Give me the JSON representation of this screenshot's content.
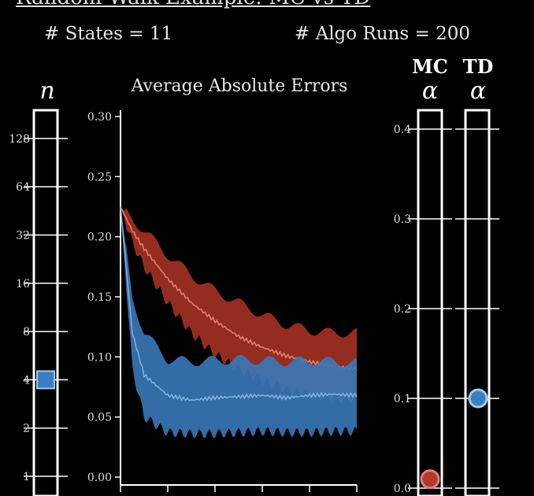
{
  "header": {
    "title": "Random Walk Example: MC vs TD",
    "states_label": "# States = 11",
    "runs_label": "# Algo Runs = 200"
  },
  "n_slider": {
    "symbol": "n",
    "ticks": [
      "1",
      "2",
      "4",
      "8",
      "16",
      "32",
      "64",
      "128"
    ],
    "value": 4
  },
  "mc_slider": {
    "label": "MC",
    "symbol": "α",
    "value": 0.01
  },
  "td_slider": {
    "label": "TD",
    "symbol": "α",
    "value": 0.1
  },
  "alpha_ticks": [
    "0.0",
    "0.1",
    "0.2",
    "0.3",
    "0.4"
  ],
  "colors": {
    "mc": "#b03a2e",
    "mc_band": "#9c2f22",
    "mc_line": "#e08070",
    "td": "#3a7fc0",
    "td_band": "#3878b8",
    "td_line": "#7fb0e0",
    "white": "#ffffff"
  },
  "chart_data": {
    "type": "area",
    "title": "Average Absolute Errors",
    "xlabel": "",
    "ylabel": "",
    "ylim": [
      0,
      0.3
    ],
    "yticks": [
      "0.00",
      "0.05",
      "0.10",
      "0.15",
      "0.20",
      "0.25",
      "0.30"
    ],
    "x": [
      0,
      0.05,
      0.1,
      0.2,
      0.3,
      0.4,
      0.5,
      0.6,
      0.7,
      0.8,
      0.9,
      1.0
    ],
    "series": [
      {
        "name": "MC",
        "mean": [
          0.225,
          0.205,
          0.19,
          0.165,
          0.145,
          0.13,
          0.117,
          0.108,
          0.101,
          0.096,
          0.092,
          0.09
        ],
        "upper": [
          0.225,
          0.215,
          0.205,
          0.185,
          0.168,
          0.155,
          0.145,
          0.135,
          0.127,
          0.122,
          0.12,
          0.12
        ],
        "lower": [
          0.225,
          0.195,
          0.175,
          0.145,
          0.12,
          0.102,
          0.09,
          0.08,
          0.073,
          0.068,
          0.066,
          0.064
        ]
      },
      {
        "name": "TD",
        "mean": [
          0.225,
          0.12,
          0.085,
          0.068,
          0.064,
          0.066,
          0.067,
          0.068,
          0.066,
          0.068,
          0.069,
          0.068
        ],
        "upper": [
          0.225,
          0.15,
          0.12,
          0.098,
          0.096,
          0.097,
          0.098,
          0.097,
          0.096,
          0.097,
          0.096,
          0.095
        ],
        "lower": [
          0.225,
          0.09,
          0.05,
          0.037,
          0.036,
          0.036,
          0.037,
          0.038,
          0.037,
          0.037,
          0.038,
          0.038
        ]
      }
    ]
  }
}
